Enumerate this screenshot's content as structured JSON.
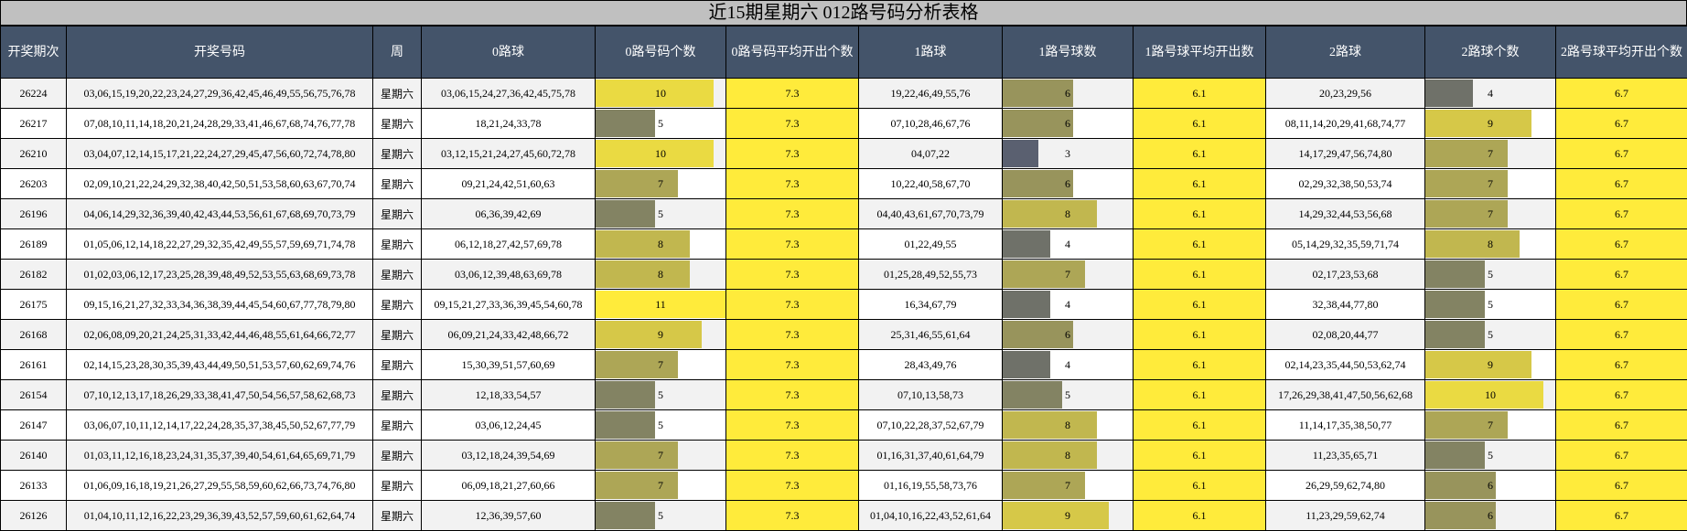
{
  "title": "近15期星期六 012路号码分析表格",
  "headers": [
    "开奖期次",
    "开奖号码",
    "周",
    "0路球",
    "0路号码个数",
    "0路号码平均开出个数",
    "1路球",
    "1路号球数",
    "1路号球平均开出数",
    "2路球",
    "2路球个数",
    "2路号球平均开出个数"
  ],
  "averages": {
    "zero": "7.3",
    "one": "6.1",
    "two": "6.7"
  },
  "count_max": 11,
  "colors": {
    "header_bg": "#44546a",
    "avg_fill": "#ffeb3b",
    "bar_low": "#5a6070",
    "bar_high": "#ffeb3b"
  },
  "rows": [
    {
      "issue": "26224",
      "numbers": "03,06,15,19,20,22,23,24,27,29,36,42,45,46,49,55,56,75,76,78",
      "week": "星期六",
      "zero_balls": "03,06,15,24,27,36,42,45,75,78",
      "zero_count": "10",
      "one_balls": "19,22,46,49,55,76",
      "one_count": "6",
      "two_balls": "20,23,29,56",
      "two_count": "4"
    },
    {
      "issue": "26217",
      "numbers": "07,08,10,11,14,18,20,21,24,28,29,33,41,46,67,68,74,76,77,78",
      "week": "星期六",
      "zero_balls": "18,21,24,33,78",
      "zero_count": "5",
      "one_balls": "07,10,28,46,67,76",
      "one_count": "6",
      "two_balls": "08,11,14,20,29,41,68,74,77",
      "two_count": "9"
    },
    {
      "issue": "26210",
      "numbers": "03,04,07,12,14,15,17,21,22,24,27,29,45,47,56,60,72,74,78,80",
      "week": "星期六",
      "zero_balls": "03,12,15,21,24,27,45,60,72,78",
      "zero_count": "10",
      "one_balls": "04,07,22",
      "one_count": "3",
      "two_balls": "14,17,29,47,56,74,80",
      "two_count": "7"
    },
    {
      "issue": "26203",
      "numbers": "02,09,10,21,22,24,29,32,38,40,42,50,51,53,58,60,63,67,70,74",
      "week": "星期六",
      "zero_balls": "09,21,24,42,51,60,63",
      "zero_count": "7",
      "one_balls": "10,22,40,58,67,70",
      "one_count": "6",
      "two_balls": "02,29,32,38,50,53,74",
      "two_count": "7"
    },
    {
      "issue": "26196",
      "numbers": "04,06,14,29,32,36,39,40,42,43,44,53,56,61,67,68,69,70,73,79",
      "week": "星期六",
      "zero_balls": "06,36,39,42,69",
      "zero_count": "5",
      "one_balls": "04,40,43,61,67,70,73,79",
      "one_count": "8",
      "two_balls": "14,29,32,44,53,56,68",
      "two_count": "7"
    },
    {
      "issue": "26189",
      "numbers": "01,05,06,12,14,18,22,27,29,32,35,42,49,55,57,59,69,71,74,78",
      "week": "星期六",
      "zero_balls": "06,12,18,27,42,57,69,78",
      "zero_count": "8",
      "one_balls": "01,22,49,55",
      "one_count": "4",
      "two_balls": "05,14,29,32,35,59,71,74",
      "two_count": "8"
    },
    {
      "issue": "26182",
      "numbers": "01,02,03,06,12,17,23,25,28,39,48,49,52,53,55,63,68,69,73,78",
      "week": "星期六",
      "zero_balls": "03,06,12,39,48,63,69,78",
      "zero_count": "8",
      "one_balls": "01,25,28,49,52,55,73",
      "one_count": "7",
      "two_balls": "02,17,23,53,68",
      "two_count": "5"
    },
    {
      "issue": "26175",
      "numbers": "09,15,16,21,27,32,33,34,36,38,39,44,45,54,60,67,77,78,79,80",
      "week": "星期六",
      "zero_balls": "09,15,21,27,33,36,39,45,54,60,78",
      "zero_count": "11",
      "one_balls": "16,34,67,79",
      "one_count": "4",
      "two_balls": "32,38,44,77,80",
      "two_count": "5"
    },
    {
      "issue": "26168",
      "numbers": "02,06,08,09,20,21,24,25,31,33,42,44,46,48,55,61,64,66,72,77",
      "week": "星期六",
      "zero_balls": "06,09,21,24,33,42,48,66,72",
      "zero_count": "9",
      "one_balls": "25,31,46,55,61,64",
      "one_count": "6",
      "two_balls": "02,08,20,44,77",
      "two_count": "5"
    },
    {
      "issue": "26161",
      "numbers": "02,14,15,23,28,30,35,39,43,44,49,50,51,53,57,60,62,69,74,76",
      "week": "星期六",
      "zero_balls": "15,30,39,51,57,60,69",
      "zero_count": "7",
      "one_balls": "28,43,49,76",
      "one_count": "4",
      "two_balls": "02,14,23,35,44,50,53,62,74",
      "two_count": "9"
    },
    {
      "issue": "26154",
      "numbers": "07,10,12,13,17,18,26,29,33,38,41,47,50,54,56,57,58,62,68,73",
      "week": "星期六",
      "zero_balls": "12,18,33,54,57",
      "zero_count": "5",
      "one_balls": "07,10,13,58,73",
      "one_count": "5",
      "two_balls": "17,26,29,38,41,47,50,56,62,68",
      "two_count": "10"
    },
    {
      "issue": "26147",
      "numbers": "03,06,07,10,11,12,14,17,22,24,28,35,37,38,45,50,52,67,77,79",
      "week": "星期六",
      "zero_balls": "03,06,12,24,45",
      "zero_count": "5",
      "one_balls": "07,10,22,28,37,52,67,79",
      "one_count": "8",
      "two_balls": "11,14,17,35,38,50,77",
      "two_count": "7"
    },
    {
      "issue": "26140",
      "numbers": "01,03,11,12,16,18,23,24,31,35,37,39,40,54,61,64,65,69,71,79",
      "week": "星期六",
      "zero_balls": "03,12,18,24,39,54,69",
      "zero_count": "7",
      "one_balls": "01,16,31,37,40,61,64,79",
      "one_count": "8",
      "two_balls": "11,23,35,65,71",
      "two_count": "5"
    },
    {
      "issue": "26133",
      "numbers": "01,06,09,16,18,19,21,26,27,29,55,58,59,60,62,66,73,74,76,80",
      "week": "星期六",
      "zero_balls": "06,09,18,21,27,60,66",
      "zero_count": "7",
      "one_balls": "01,16,19,55,58,73,76",
      "one_count": "7",
      "two_balls": "26,29,59,62,74,80",
      "two_count": "6"
    },
    {
      "issue": "26126",
      "numbers": "01,04,10,11,12,16,22,23,29,36,39,43,52,57,59,60,61,62,64,74",
      "week": "星期六",
      "zero_balls": "12,36,39,57,60",
      "zero_count": "5",
      "one_balls": "01,04,10,16,22,43,52,61,64",
      "one_count": "9",
      "two_balls": "11,23,29,59,62,74",
      "two_count": "6"
    }
  ]
}
